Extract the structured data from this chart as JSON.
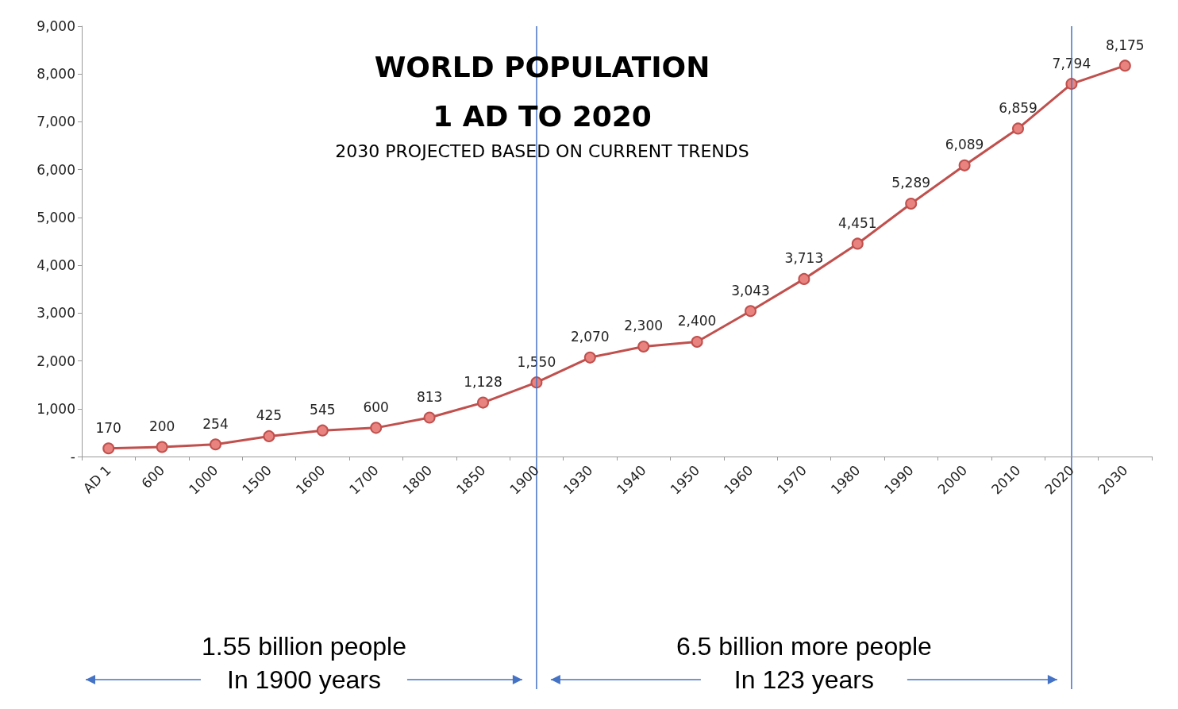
{
  "chart_data": {
    "type": "line",
    "title": "WORLD POPULATION\n1 AD TO 2020",
    "subtitle": "2030 PROJECTED BASED ON CURRENT TRENDS",
    "categories": [
      "AD 1",
      "600",
      "1000",
      "1500",
      "1600",
      "1700",
      "1800",
      "1850",
      "1900",
      "1930",
      "1940",
      "1950",
      "1960",
      "1970",
      "1980",
      "1990",
      "2000",
      "2010",
      "2020",
      "2030"
    ],
    "series": [
      {
        "color": "#c0504d",
        "values": [
          170,
          200,
          254,
          425,
          545,
          600,
          813,
          1128,
          1550,
          2070,
          2300,
          2400,
          3043,
          3713,
          4451,
          5289,
          6089,
          6859,
          7794,
          8175
        ],
        "value_labels": [
          "170",
          "200",
          "254",
          "425",
          "545",
          "600",
          "813",
          "1,128",
          "1,550",
          "2,070",
          "2,300",
          "2,400",
          "3,043",
          "3,713",
          "4,451",
          "5,289",
          "6,089",
          "6,859",
          "7,794",
          "8,175"
        ]
      }
    ],
    "ylim": [
      0,
      9000
    ],
    "yticks": [
      {
        "value": 0,
        "label": "-"
      },
      {
        "value": 1000,
        "label": "1,000"
      },
      {
        "value": 2000,
        "label": "2,000"
      },
      {
        "value": 3000,
        "label": "3,000"
      },
      {
        "value": 4000,
        "label": "4,000"
      },
      {
        "value": 5000,
        "label": "5,000"
      },
      {
        "value": 6000,
        "label": "6,000"
      },
      {
        "value": 7000,
        "label": "7,000"
      },
      {
        "value": 8000,
        "label": "8,000"
      },
      {
        "value": 9000,
        "label": "9,000"
      }
    ],
    "grid": false,
    "marker": "circle",
    "line_style": "solid",
    "ref_lines": [
      {
        "axis": "x",
        "value": "1900",
        "color": "#4472c4"
      },
      {
        "axis": "x",
        "value": "2020",
        "color": "#4472c4"
      }
    ],
    "annotations": [
      "1.55 billion people\nIn 1900 years",
      "6.5 billion more people\nIn 123 years"
    ]
  }
}
